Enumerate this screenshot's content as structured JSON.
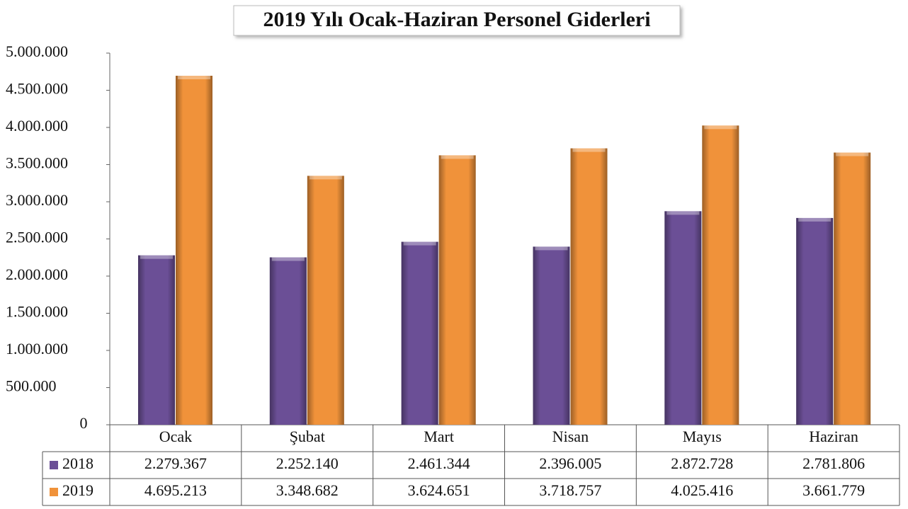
{
  "chart_data": {
    "type": "bar",
    "title": "2019 Yılı Ocak-Haziran Personel Giderleri",
    "categories": [
      "Ocak",
      "Şubat",
      "Mart",
      "Nisan",
      "Mayıs",
      "Haziran"
    ],
    "series": [
      {
        "name": "2018",
        "color": "#6b4f96",
        "values": [
          2279367,
          2252140,
          2461344,
          2396005,
          2872728,
          2781806
        ],
        "value_labels": [
          "2.279.367",
          "2.252.140",
          "2.461.344",
          "2.396.005",
          "2.872.728",
          "2.781.806"
        ]
      },
      {
        "name": "2019",
        "color": "#f0923a",
        "values": [
          4695213,
          3348682,
          3624651,
          3718757,
          4025416,
          3661779
        ],
        "value_labels": [
          "4.695.213",
          "3.348.682",
          "3.624.651",
          "3.718.757",
          "4.025.416",
          "3.661.779"
        ]
      }
    ],
    "ylim": [
      0,
      5000000
    ],
    "yticks": [
      0,
      {
        "value": 500000,
        "label": "500.000"
      },
      {
        "value": 1000000,
        "label": "1.000.000"
      },
      {
        "value": 1500000,
        "label": "1.500.000"
      },
      {
        "value": 2000000,
        "label": "2.000.000"
      },
      {
        "value": 2500000,
        "label": "2.500.000"
      },
      {
        "value": 3000000,
        "label": "3.000.000"
      },
      {
        "value": 3500000,
        "label": "3.500.000"
      },
      {
        "value": 4000000,
        "label": "4.000.000"
      },
      {
        "value": 4500000,
        "label": "4.500.000"
      },
      {
        "value": 5000000,
        "label": "5.000.000"
      }
    ],
    "grid": false
  }
}
